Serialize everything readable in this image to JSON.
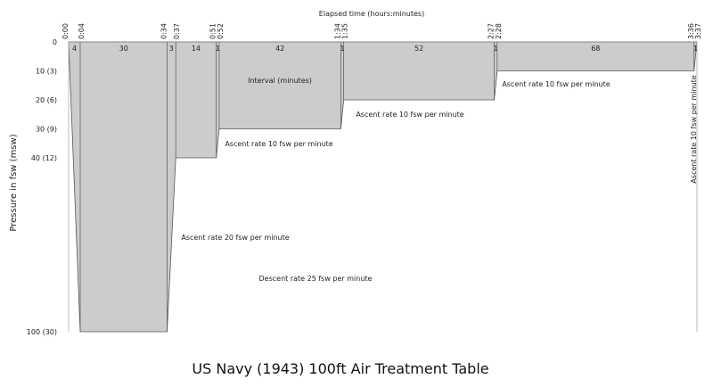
{
  "title": "US Navy (1943) 100ft Air Treatment Table",
  "top_axis_label": "Elapsed time (hours:minutes)",
  "y_axis_label": "Pressure in fsw (msw)",
  "interval_label": "Interval (minutes)",
  "y_ticks": [
    {
      "depth": 0,
      "label": "0"
    },
    {
      "depth": 10,
      "label": "10 (3)"
    },
    {
      "depth": 20,
      "label": "20 (6)"
    },
    {
      "depth": 30,
      "label": "30 (9)"
    },
    {
      "depth": 40,
      "label": "40 (12)"
    },
    {
      "depth": 100,
      "label": "100 (30)"
    }
  ],
  "profile": [
    {
      "t": 0,
      "d": 0,
      "label": "0:00"
    },
    {
      "t": 4,
      "d": 100,
      "label": "0:04"
    },
    {
      "t": 34,
      "d": 100,
      "label": "0:34"
    },
    {
      "t": 37,
      "d": 40,
      "label": "0:37"
    },
    {
      "t": 51,
      "d": 40,
      "label": "0:51"
    },
    {
      "t": 52,
      "d": 30,
      "label": "0:52"
    },
    {
      "t": 94,
      "d": 30,
      "label": "1:34"
    },
    {
      "t": 95,
      "d": 20,
      "label": "1:35"
    },
    {
      "t": 147,
      "d": 20,
      "label": "2:27"
    },
    {
      "t": 148,
      "d": 10,
      "label": "2:28"
    },
    {
      "t": 216,
      "d": 10,
      "label": "3:36"
    },
    {
      "t": 217,
      "d": 0,
      "label": "3:37"
    }
  ],
  "intervals": [
    "4",
    "30",
    "3",
    "14",
    "1",
    "42",
    "1",
    "52",
    "1",
    "68",
    "1"
  ],
  "annotations": {
    "descent": "Descent rate 25 fsw per minute",
    "ascent20": "Ascent rate 20 fsw per minute",
    "ascent10_a": "Ascent rate 10 fsw per minute",
    "ascent10_b": "Ascent rate 10 fsw per minute",
    "ascent10_c": "Ascent rate 10 fsw per minute",
    "ascent10_d": "Ascent rate 10 fsw per minute"
  },
  "colors": {
    "fill": "#cccccc",
    "stroke": "#555555"
  }
}
